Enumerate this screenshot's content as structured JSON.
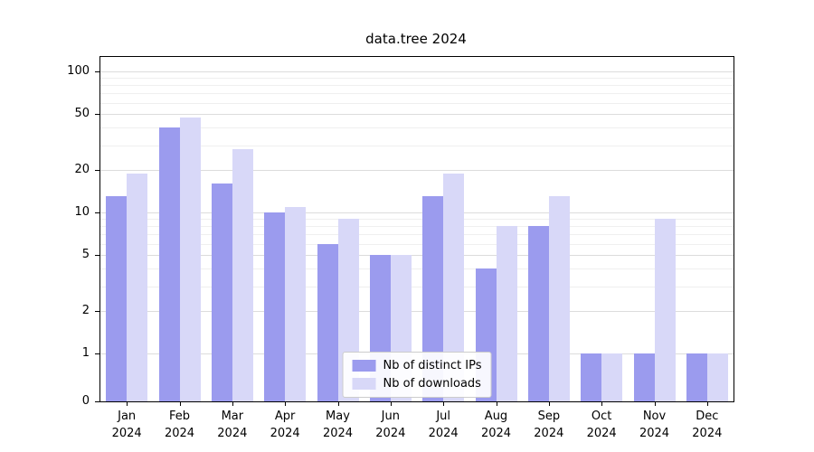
{
  "chart_data": {
    "type": "bar",
    "title": "data.tree 2024",
    "scale": "log_with_zero",
    "grid": true,
    "legend_position": "lower center",
    "year": "2024",
    "categories": [
      "Jan",
      "Feb",
      "Mar",
      "Apr",
      "May",
      "Jun",
      "Jul",
      "Aug",
      "Sep",
      "Oct",
      "Nov",
      "Dec"
    ],
    "series": [
      {
        "name": "Nb of distinct IPs",
        "color": "#9b9bee",
        "values": [
          13,
          40,
          16,
          10,
          6,
          5,
          13,
          4,
          8,
          1,
          1,
          1
        ]
      },
      {
        "name": "Nb of downloads",
        "color": "#d8d8f8",
        "values": [
          19,
          47,
          28,
          11,
          9,
          5,
          19,
          8,
          13,
          1,
          9,
          1
        ]
      }
    ],
    "yticks": [
      100,
      50,
      20,
      10,
      5,
      2,
      1,
      0
    ],
    "minor_yticks": [
      3,
      4,
      6,
      7,
      8,
      9,
      30,
      40,
      60,
      70,
      80,
      90
    ],
    "ylim": [
      0,
      126
    ],
    "xlabel": "",
    "ylabel": ""
  }
}
